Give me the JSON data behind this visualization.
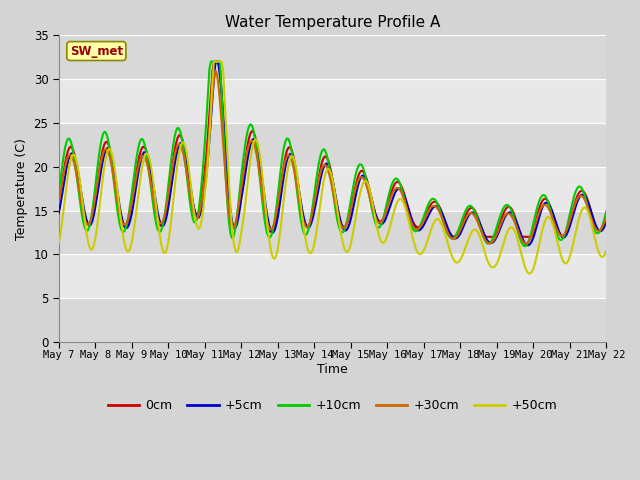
{
  "title": "Water Temperature Profile A",
  "xlabel": "Time",
  "ylabel": "Temperature (C)",
  "ylim": [
    0,
    35
  ],
  "yticks": [
    0,
    5,
    10,
    15,
    20,
    25,
    30,
    35
  ],
  "date_labels": [
    "May 7",
    "May 8",
    "May 9",
    "May 10",
    "May 11",
    "May 12",
    "May 13",
    "May 14",
    "May 15",
    "May 16",
    "May 17",
    "May 18",
    "May 19",
    "May 20",
    "May 21",
    "May 22"
  ],
  "legend_labels": [
    "0cm",
    "+5cm",
    "+10cm",
    "+30cm",
    "+50cm"
  ],
  "legend_colors": [
    "#cc0000",
    "#0000cc",
    "#00cc00",
    "#cc6600",
    "#cccc00"
  ],
  "label_box_text": "SW_met",
  "label_box_text_color": "#990000",
  "colors": {
    "0cm": "#cc0000",
    "+5cm": "#0000cc",
    "+10cm": "#00cc00",
    "+30cm": "#cc6600",
    "+50cm": "#cccc00"
  },
  "fig_facecolor": "#d4d4d4",
  "ax_facecolor": "#e8e8e8",
  "grid_color": "#ffffff",
  "band_color_light": "#f0f0f0",
  "band_color_dark": "#e0e0e0"
}
